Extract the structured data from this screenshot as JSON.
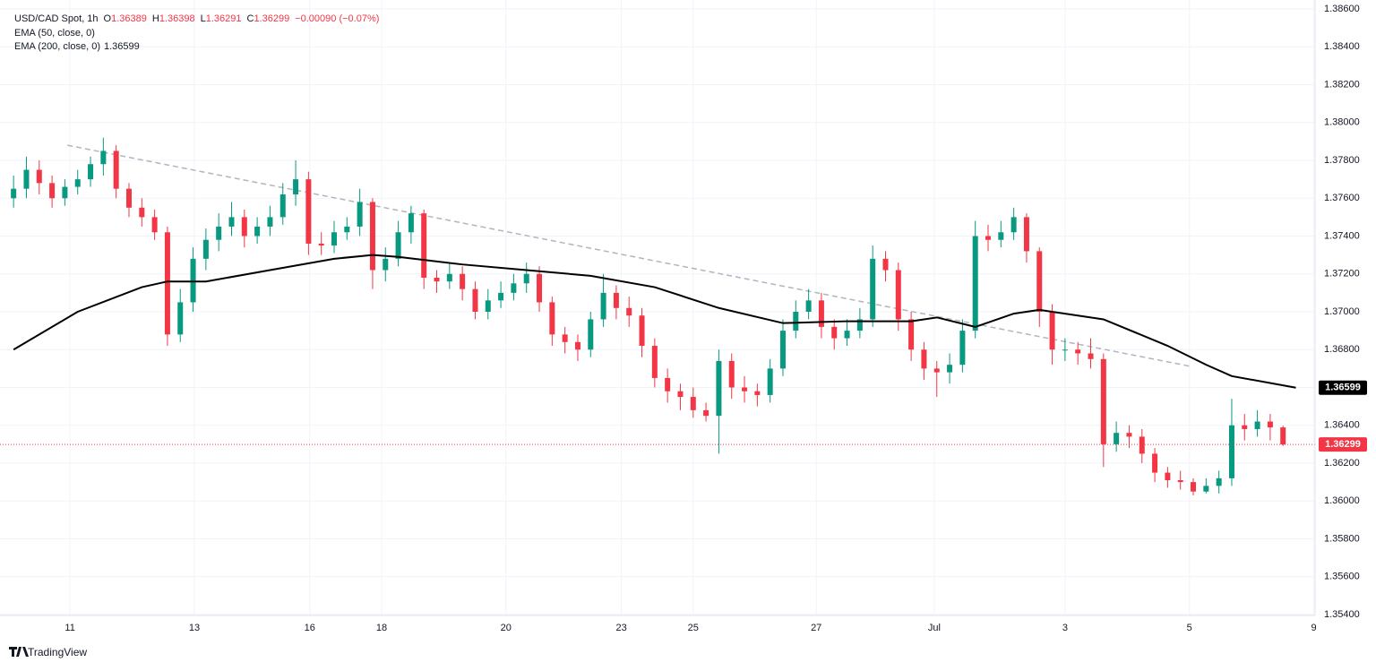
{
  "chart_data": {
    "type": "candlestick",
    "title": "USD/CAD Spot, 1h",
    "header": [
      {
        "label": "O",
        "value": "1.36389"
      },
      {
        "label": "H",
        "value": "1.36398"
      },
      {
        "label": "L",
        "value": "1.36291"
      },
      {
        "label": "C",
        "value": "1.36299"
      },
      {
        "label": "",
        "value": "−0.00090 (−0.07%)"
      }
    ],
    "indicators": [
      "EMA (50, close, 0)",
      "EMA (200, close, 0)"
    ],
    "brand": "TradingView",
    "up_color": "#089981",
    "down_color": "#f23645",
    "open": [
      1.376,
      1.3765,
      1.3775,
      1.3768,
      1.376,
      1.3766,
      1.377,
      1.3778,
      1.3785,
      1.3765,
      1.3755,
      1.375,
      1.3742,
      1.3688,
      1.3705,
      1.3728,
      1.3738,
      1.3745,
      1.375,
      1.374,
      1.3745,
      1.375,
      1.3762,
      1.377,
      1.3736,
      1.3735,
      1.3742,
      1.3745,
      1.3758,
      1.3722,
      1.3728,
      1.3742,
      1.3752,
      1.3718,
      1.3716,
      1.372,
      1.3712,
      1.37,
      1.3706,
      1.371,
      1.3715,
      1.372,
      1.3705,
      1.3688,
      1.3684,
      1.368,
      1.3696,
      1.371,
      1.3702,
      1.3698,
      1.3682,
      1.3665,
      1.3658,
      1.3655,
      1.3648,
      1.3645,
      1.3674,
      1.366,
      1.3658,
      1.3656,
      1.367,
      1.369,
      1.37,
      1.3706,
      1.3692,
      1.3686,
      1.369,
      1.3696,
      1.3728,
      1.3722,
      1.3696,
      1.368,
      1.367,
      1.3668,
      1.3672,
      1.369,
      1.374,
      1.3738,
      1.3742,
      1.375,
      1.3732,
      1.37,
      1.368,
      1.368,
      1.3678,
      1.3675,
      1.363,
      1.3636,
      1.3634,
      1.3625,
      1.3615,
      1.3611,
      1.361,
      1.3605,
      1.3608,
      1.3612,
      1.364,
      1.3638,
      1.3642,
      1.36389
    ],
    "high": [
      1.3772,
      1.3782,
      1.378,
      1.3772,
      1.377,
      1.3775,
      1.3782,
      1.3792,
      1.3788,
      1.3768,
      1.376,
      1.3754,
      1.3745,
      1.3712,
      1.3734,
      1.3744,
      1.3752,
      1.3758,
      1.3754,
      1.375,
      1.3756,
      1.3768,
      1.378,
      1.3774,
      1.3742,
      1.3748,
      1.375,
      1.3765,
      1.376,
      1.3734,
      1.3748,
      1.3756,
      1.3754,
      1.3722,
      1.3726,
      1.3724,
      1.3716,
      1.3712,
      1.3716,
      1.372,
      1.3726,
      1.3724,
      1.3708,
      1.3692,
      1.3688,
      1.37,
      1.372,
      1.3714,
      1.3708,
      1.3702,
      1.3686,
      1.367,
      1.3662,
      1.366,
      1.3652,
      1.368,
      1.3678,
      1.3666,
      1.3662,
      1.3675,
      1.3696,
      1.3706,
      1.3712,
      1.371,
      1.3696,
      1.3696,
      1.3702,
      1.3735,
      1.3732,
      1.3726,
      1.37,
      1.3684,
      1.3674,
      1.3678,
      1.3696,
      1.3748,
      1.3746,
      1.3748,
      1.3755,
      1.3752,
      1.3734,
      1.3704,
      1.3686,
      1.3684,
      1.3686,
      1.3678,
      1.3642,
      1.364,
      1.3638,
      1.3628,
      1.3618,
      1.3616,
      1.3612,
      1.3612,
      1.3616,
      1.3654,
      1.3646,
      1.3648,
      1.3646,
      1.36398
    ],
    "low": [
      1.3755,
      1.376,
      1.3762,
      1.3755,
      1.3756,
      1.3762,
      1.3766,
      1.3772,
      1.376,
      1.375,
      1.3745,
      1.3738,
      1.3682,
      1.3684,
      1.37,
      1.3722,
      1.3732,
      1.374,
      1.3734,
      1.3736,
      1.374,
      1.3746,
      1.3756,
      1.373,
      1.373,
      1.3731,
      1.3738,
      1.374,
      1.3712,
      1.3716,
      1.3724,
      1.3736,
      1.3712,
      1.371,
      1.3712,
      1.3706,
      1.3696,
      1.3696,
      1.3702,
      1.3706,
      1.371,
      1.37,
      1.3682,
      1.3678,
      1.3674,
      1.3676,
      1.3692,
      1.3696,
      1.3692,
      1.3676,
      1.366,
      1.3652,
      1.3648,
      1.3644,
      1.3642,
      1.3625,
      1.3654,
      1.3652,
      1.365,
      1.3652,
      1.3666,
      1.3686,
      1.3696,
      1.3686,
      1.368,
      1.3682,
      1.3686,
      1.3692,
      1.3716,
      1.369,
      1.3674,
      1.3664,
      1.3655,
      1.3662,
      1.3668,
      1.3686,
      1.3732,
      1.3734,
      1.3738,
      1.3726,
      1.3692,
      1.3672,
      1.3674,
      1.3672,
      1.367,
      1.3618,
      1.3626,
      1.3628,
      1.362,
      1.361,
      1.3607,
      1.3606,
      1.3603,
      1.3604,
      1.3604,
      1.3608,
      1.3632,
      1.3634,
      1.3632,
      1.36291
    ],
    "close": [
      1.3765,
      1.3775,
      1.3768,
      1.376,
      1.3766,
      1.377,
      1.3778,
      1.3785,
      1.3765,
      1.3755,
      1.375,
      1.3742,
      1.3688,
      1.3705,
      1.3728,
      1.3738,
      1.3745,
      1.375,
      1.374,
      1.3745,
      1.375,
      1.3762,
      1.377,
      1.3736,
      1.3735,
      1.3742,
      1.3745,
      1.3758,
      1.3722,
      1.3728,
      1.3742,
      1.3752,
      1.3718,
      1.3716,
      1.372,
      1.3712,
      1.37,
      1.3706,
      1.371,
      1.3715,
      1.372,
      1.3705,
      1.3688,
      1.3684,
      1.368,
      1.3696,
      1.371,
      1.3702,
      1.3698,
      1.3682,
      1.3665,
      1.3658,
      1.3655,
      1.3648,
      1.3645,
      1.3674,
      1.366,
      1.3658,
      1.3656,
      1.367,
      1.369,
      1.37,
      1.3706,
      1.3692,
      1.3686,
      1.369,
      1.3696,
      1.3728,
      1.3722,
      1.3696,
      1.368,
      1.367,
      1.3668,
      1.3672,
      1.369,
      1.374,
      1.3738,
      1.3742,
      1.375,
      1.3732,
      1.37,
      1.368,
      1.368,
      1.3678,
      1.3675,
      1.363,
      1.3636,
      1.3634,
      1.3625,
      1.3615,
      1.3611,
      1.361,
      1.3605,
      1.3608,
      1.3612,
      1.364,
      1.3638,
      1.3642,
      1.36389,
      1.36299
    ],
    "ema": {
      "name": "EMA (200, close, 0)",
      "color": "#000000",
      "x": [
        0,
        5,
        10,
        12,
        15,
        20,
        25,
        28,
        30,
        35,
        40,
        45,
        50,
        55,
        60,
        65,
        70,
        72,
        75,
        78,
        80,
        85,
        90,
        93,
        95,
        100
      ],
      "values": [
        1.368,
        1.37,
        1.3713,
        1.3716,
        1.3716,
        1.3722,
        1.3728,
        1.373,
        1.3729,
        1.3725,
        1.3722,
        1.3719,
        1.3713,
        1.3702,
        1.3694,
        1.3695,
        1.3695,
        1.3697,
        1.3692,
        1.3699,
        1.3701,
        1.3696,
        1.3682,
        1.3672,
        1.3666,
        1.36599
      ]
    },
    "trendline": {
      "x": [
        4.2,
        91.9
      ],
      "values": [
        1.3788,
        1.3671
      ],
      "color": "#b2b5be"
    },
    "xlim": [
      -0.5,
      101.5
    ],
    "xticks": [
      {
        "value": 4.4,
        "label": "11"
      },
      {
        "value": 14.1,
        "label": "13"
      },
      {
        "value": 23.1,
        "label": "16"
      },
      {
        "value": 28.7,
        "label": "18"
      },
      {
        "value": 38.4,
        "label": "20"
      },
      {
        "value": 47.4,
        "label": "23"
      },
      {
        "value": 53.0,
        "label": "25"
      },
      {
        "value": 62.6,
        "label": "27"
      },
      {
        "value": 71.8,
        "label": "Jul"
      },
      {
        "value": 82.0,
        "label": "3"
      },
      {
        "value": 91.7,
        "label": "5"
      },
      {
        "value": 101.4,
        "label": "9"
      }
    ],
    "ylim": [
      1.354,
      1.386
    ],
    "yticks": [
      {
        "value": 1.354,
        "label": "1.35400"
      },
      {
        "value": 1.356,
        "label": "1.35600"
      },
      {
        "value": 1.358,
        "label": "1.35800"
      },
      {
        "value": 1.36,
        "label": "1.36000"
      },
      {
        "value": 1.362,
        "label": "1.36200"
      },
      {
        "value": 1.364,
        "label": "1.36400"
      },
      {
        "value": 1.366,
        "label": "1.36600"
      },
      {
        "value": 1.368,
        "label": "1.36800"
      },
      {
        "value": 1.37,
        "label": "1.37000"
      },
      {
        "value": 1.372,
        "label": "1.37200"
      },
      {
        "value": 1.374,
        "label": "1.37400"
      },
      {
        "value": 1.376,
        "label": "1.37600"
      },
      {
        "value": 1.378,
        "label": "1.37800"
      },
      {
        "value": 1.38,
        "label": "1.38000"
      },
      {
        "value": 1.382,
        "label": "1.38200"
      },
      {
        "value": 1.384,
        "label": "1.38400"
      },
      {
        "value": 1.386,
        "label": "1.38600"
      }
    ],
    "grid": true
  }
}
